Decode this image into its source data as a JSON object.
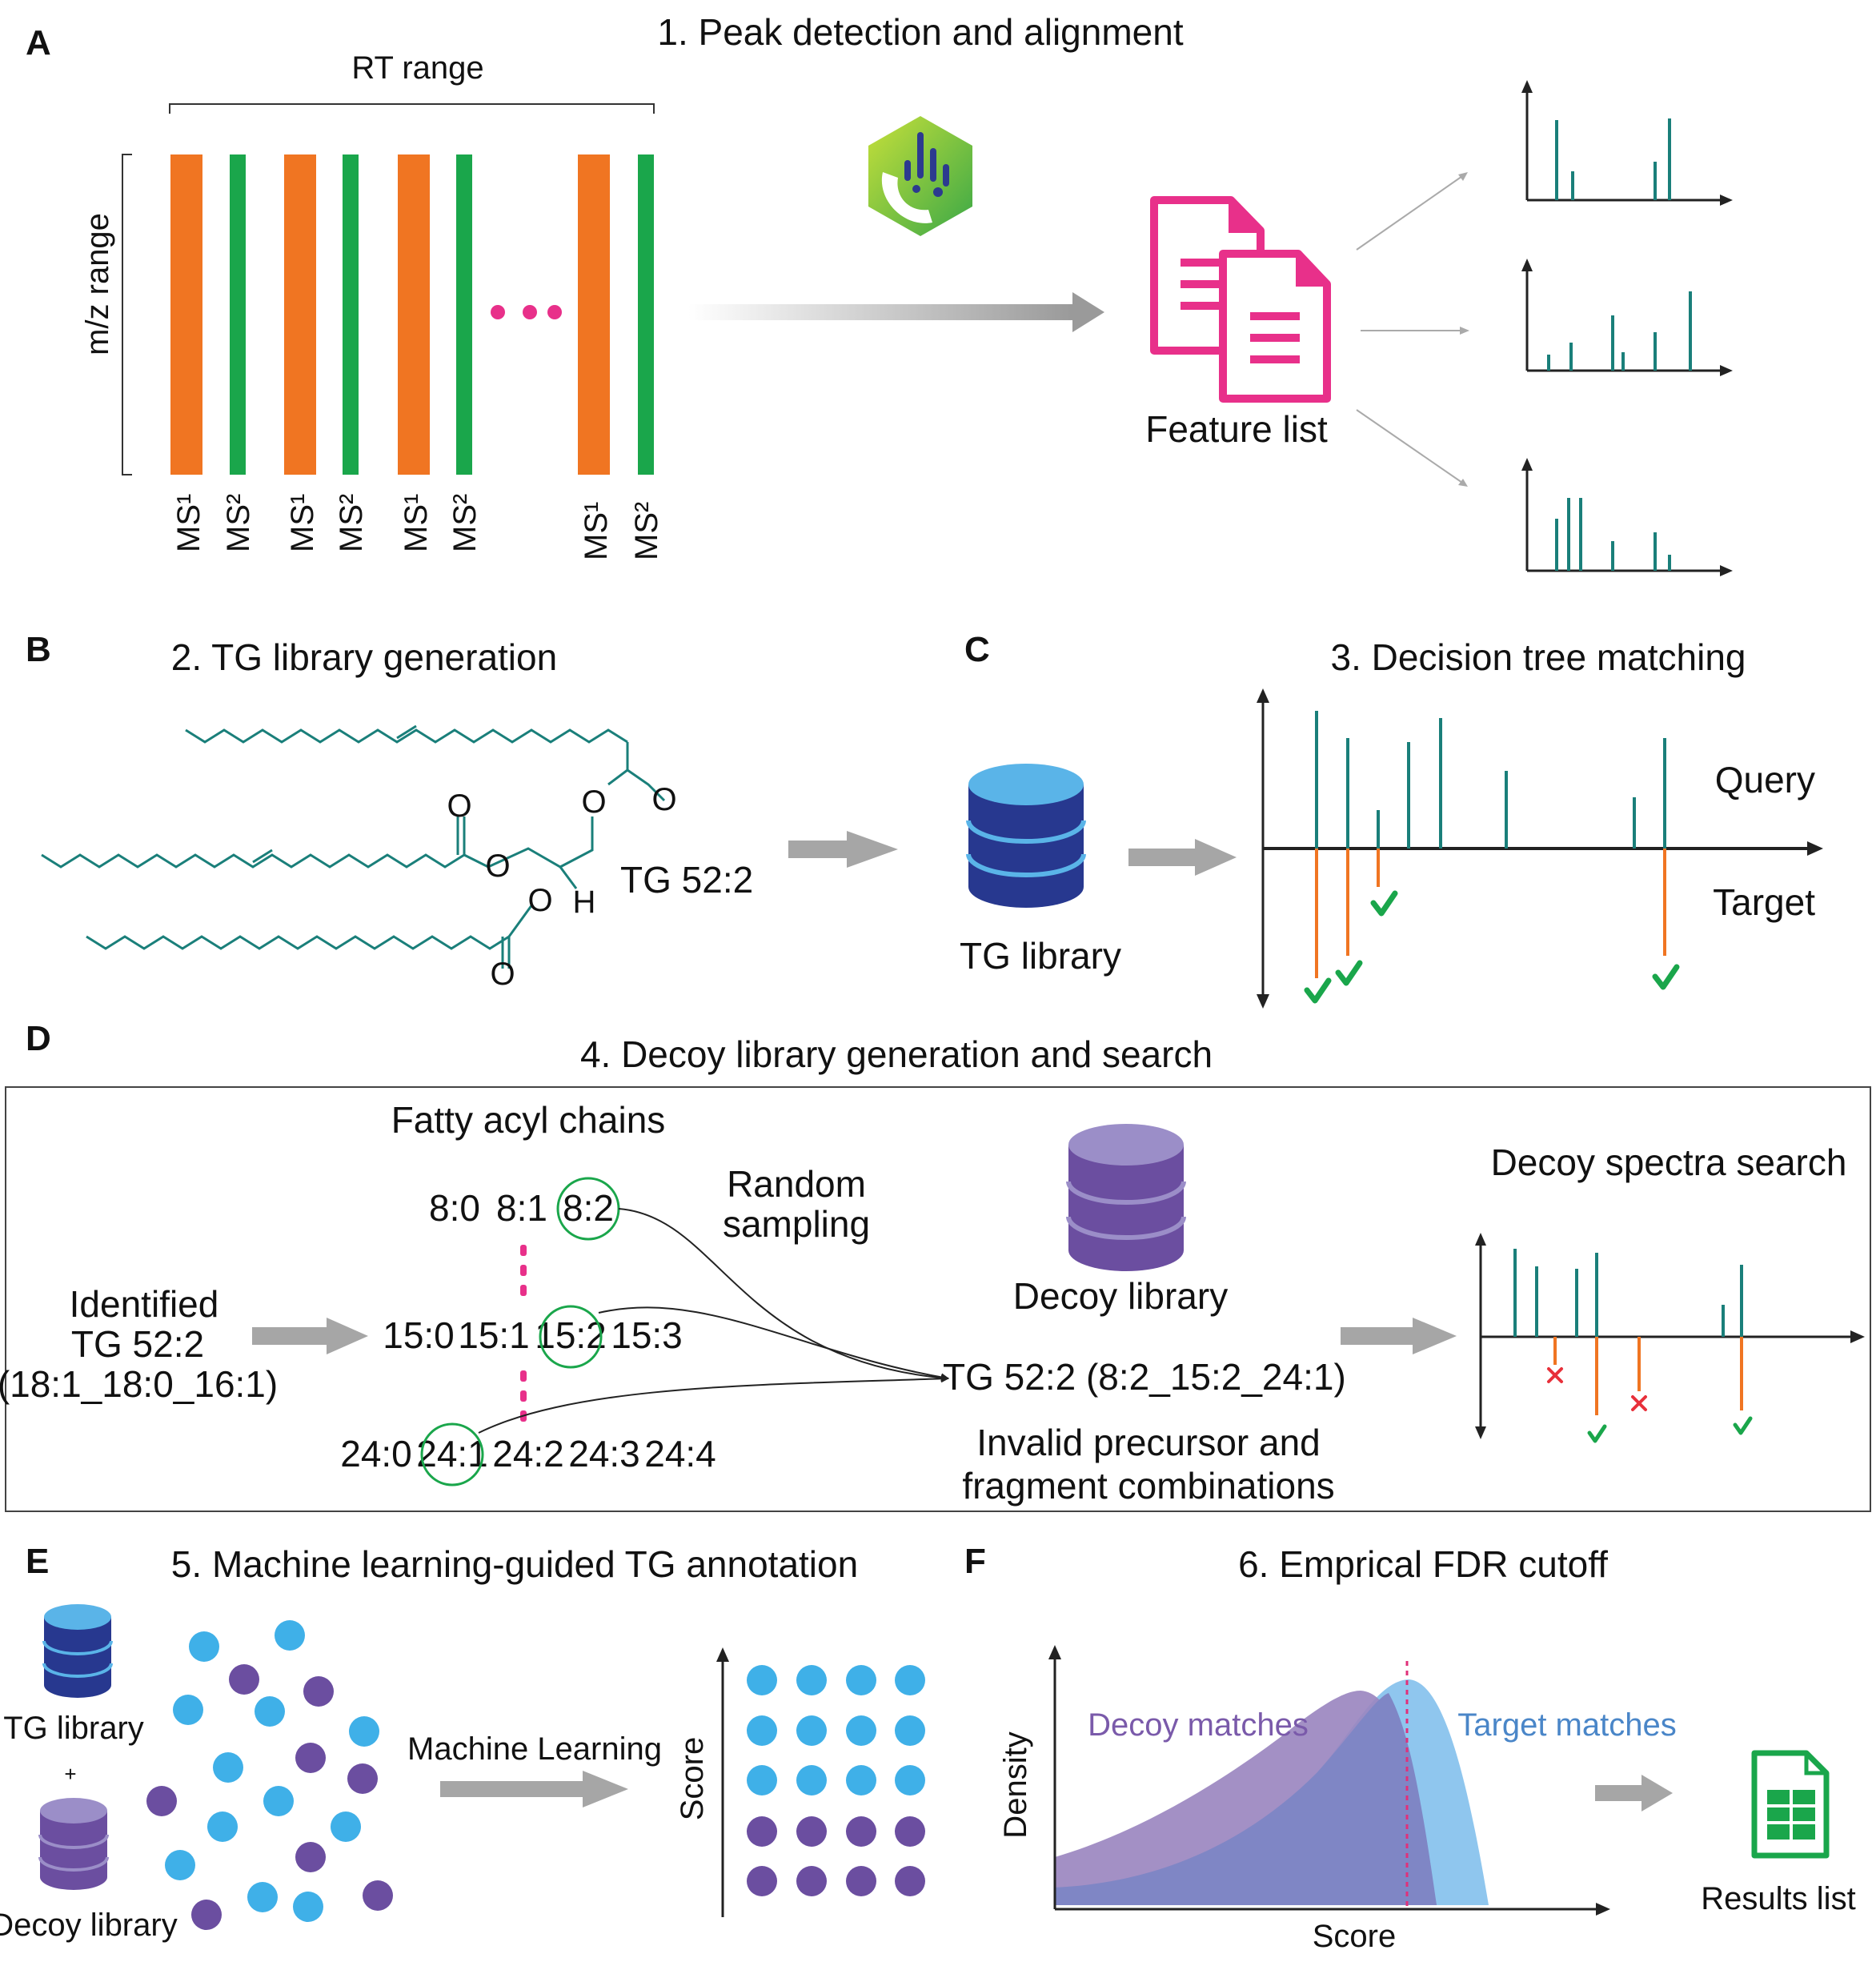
{
  "panels": {
    "A": {
      "letter": "A",
      "title": "1. Peak detection and alignment",
      "rt_range": "RT range",
      "mz_range": "m/z range",
      "scan_labels": [
        "MS¹",
        "MS²",
        "MS¹",
        "MS²",
        "MS¹",
        "MS²",
        "MS¹",
        "MS²"
      ],
      "feature_list": "Feature list"
    },
    "B": {
      "letter": "B",
      "title": "2. TG library generation",
      "molecule": "TG 52:2",
      "atoms": {
        "o_carbonyl_1": "O",
        "o_carbonyl_2": "O",
        "o_carbonyl_3": "O",
        "o_ester_1": "O",
        "o_ester_2": "O",
        "o_ester_3": "O",
        "h": "H"
      }
    },
    "C": {
      "letter": "C",
      "title": "3. Decision tree matching",
      "library": "TG library",
      "query": "Query",
      "target": "Target"
    },
    "D": {
      "letter": "D",
      "title": "4. Decoy library generation and search",
      "fatty_acyl": "Fatty acyl chains",
      "row1": [
        "8:0",
        "8:1",
        "8:2"
      ],
      "row2": [
        "15:0",
        "15:1",
        "15:2",
        "15:3"
      ],
      "row3": [
        "24:0",
        "24:1",
        "24:2",
        "24:3",
        "24:4"
      ],
      "identified": [
        "Identified",
        "TG 52:2",
        "(18:1_18:0_16:1)"
      ],
      "random_sampling": [
        "Random",
        "sampling"
      ],
      "decoy_library": "Decoy library",
      "decoy_tg": "TG 52:2 (8:2_15:2_24:1)",
      "invalid": [
        "Invalid precursor and",
        "fragment combinations"
      ],
      "decoy_search": "Decoy spectra search"
    },
    "E": {
      "letter": "E",
      "title": "5. Machine learning-guided TG annotation",
      "tg_library": "TG library",
      "plus": "+",
      "decoy_library": "Decoy library",
      "ml": "Machine Learning",
      "score": "Score"
    },
    "F": {
      "letter": "F",
      "title": "6.  Emprical FDR cutoff",
      "decoy_matches": "Decoy matches",
      "target_matches": "Target matches",
      "density": "Density",
      "score": "Score",
      "results": "Results list"
    }
  },
  "colors": {
    "orange": "#f07522",
    "green": "#1aa64b",
    "teal": "#1a7f7a",
    "pink": "#e8308a",
    "blue_light": "#5ab4e8",
    "blue_dark": "#27388f",
    "purple": "#6b4ea0",
    "gray": "#a6a6a6",
    "check": "#1aa64b",
    "cross": "#e8303a",
    "decoy_fill": "#9b87c0",
    "target_fill": "#8fc6ee",
    "fdr_line": "#e0307a"
  },
  "icons": [
    "app-logo-icon",
    "document-icon",
    "database-icon",
    "spreadsheet-icon"
  ],
  "chart_data": {
    "type": "area",
    "series": [
      {
        "name": "Decoy matches"
      },
      {
        "name": "Target matches"
      }
    ],
    "xlabel": "Score",
    "ylabel": "Density",
    "grid": false
  }
}
